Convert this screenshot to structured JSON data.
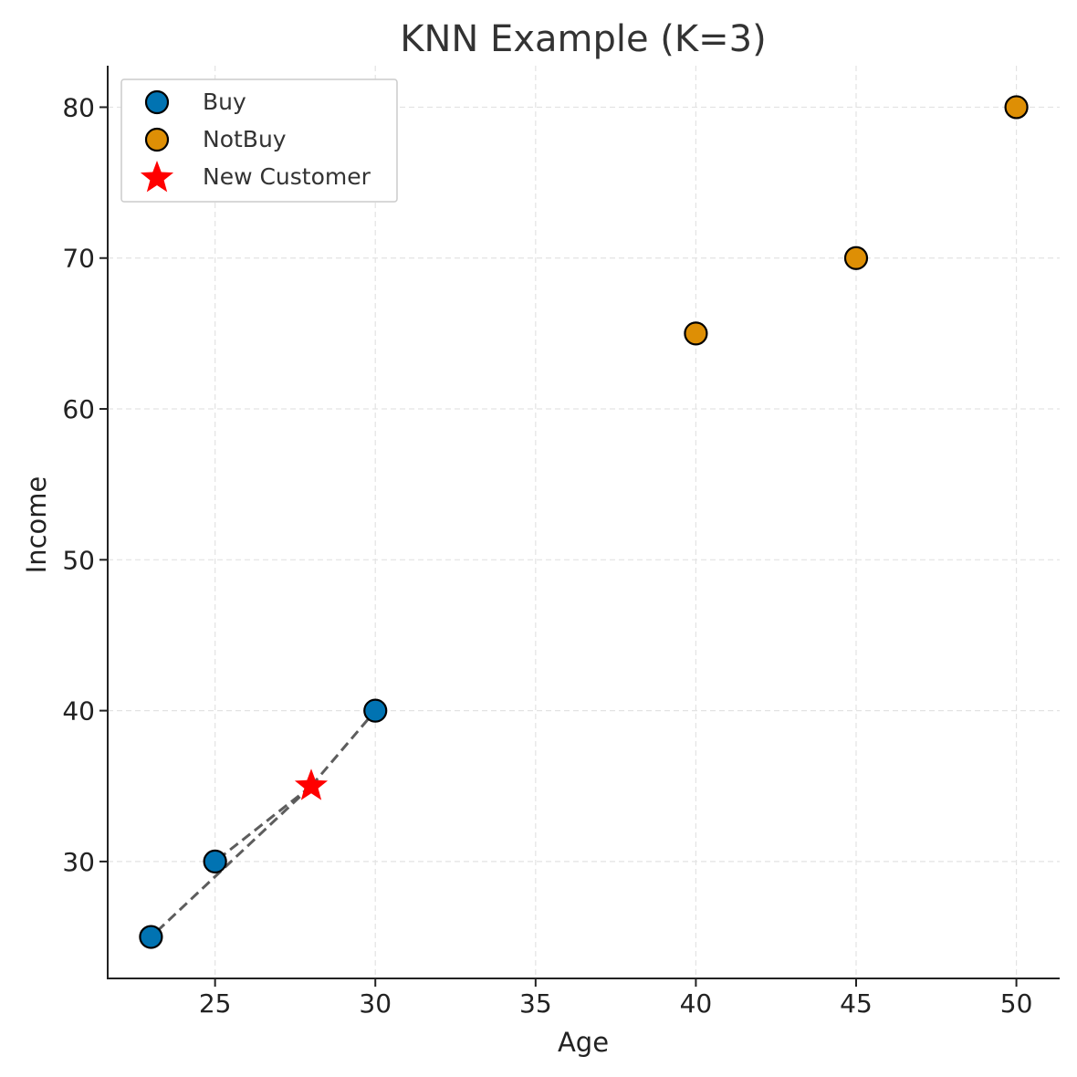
{
  "chart_data": {
    "type": "scatter",
    "title": "KNN Example (K=3)",
    "xlabel": "Age",
    "ylabel": "Income",
    "xlim": [
      21.65,
      51.35
    ],
    "ylim": [
      22.25,
      82.75
    ],
    "xticks": [
      25,
      30,
      35,
      40,
      45,
      50
    ],
    "yticks": [
      30,
      40,
      50,
      60,
      70,
      80
    ],
    "grid": true,
    "legend_position": "top-left",
    "series": [
      {
        "name": "Buy",
        "marker": "circle",
        "color": "#0173b2",
        "points": [
          {
            "x": 23,
            "y": 25
          },
          {
            "x": 25,
            "y": 30
          },
          {
            "x": 30,
            "y": 40
          }
        ]
      },
      {
        "name": "NotBuy",
        "marker": "circle",
        "color": "#de8f05",
        "points": [
          {
            "x": 40,
            "y": 65
          },
          {
            "x": 45,
            "y": 70
          },
          {
            "x": 50,
            "y": 80
          }
        ]
      },
      {
        "name": "New Customer",
        "marker": "star",
        "color": "#ff0000",
        "points": [
          {
            "x": 28,
            "y": 35
          }
        ]
      }
    ],
    "neighbor_lines": {
      "from": {
        "x": 28,
        "y": 35
      },
      "to": [
        {
          "x": 25,
          "y": 30
        },
        {
          "x": 23,
          "y": 25
        },
        {
          "x": 30,
          "y": 40
        }
      ],
      "style": "dashed",
      "color": "#555555"
    }
  }
}
